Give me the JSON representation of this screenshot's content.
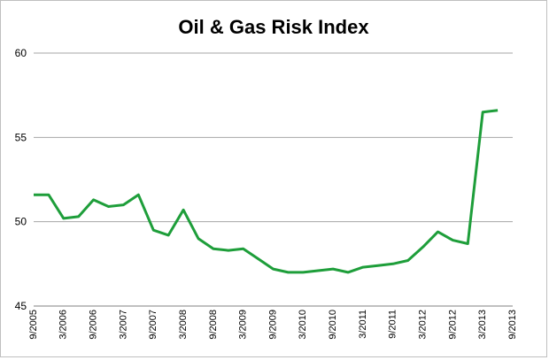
{
  "chart_data": {
    "type": "line",
    "title": "Oil & Gas Risk Index",
    "xlabel": "",
    "ylabel": "",
    "ylim": [
      45,
      60
    ],
    "yticks": [
      "45",
      "50",
      "55",
      "60"
    ],
    "xticks": [
      "9/2005",
      "3/2006",
      "9/2006",
      "3/2007",
      "9/2007",
      "3/2008",
      "9/2008",
      "3/2009",
      "9/2009",
      "3/2010",
      "9/2010",
      "3/2011",
      "9/2011",
      "3/2012",
      "9/2012",
      "3/2013",
      "9/2013"
    ],
    "grid": true,
    "legend": "none",
    "series": [
      {
        "color": "#1e9e3a",
        "x": [
          "9/2005",
          "12/2005",
          "3/2006",
          "6/2006",
          "9/2006",
          "12/2006",
          "3/2007",
          "6/2007",
          "9/2007",
          "12/2007",
          "3/2008",
          "6/2008",
          "9/2008",
          "12/2008",
          "3/2009",
          "6/2009",
          "9/2009",
          "12/2009",
          "3/2010",
          "6/2010",
          "9/2010",
          "12/2010",
          "3/2011",
          "6/2011",
          "9/2011",
          "12/2011",
          "3/2012",
          "6/2012",
          "9/2012",
          "12/2012",
          "3/2013",
          "6/2013"
        ],
        "values": [
          51.6,
          51.6,
          50.2,
          50.3,
          51.3,
          50.9,
          51.0,
          51.6,
          49.5,
          49.2,
          50.7,
          49.0,
          48.4,
          48.3,
          48.4,
          47.8,
          47.2,
          47.0,
          47.0,
          47.1,
          47.2,
          47.0,
          47.3,
          47.4,
          47.5,
          47.7,
          48.5,
          49.4,
          48.9,
          48.7,
          56.5,
          56.6
        ]
      }
    ]
  }
}
